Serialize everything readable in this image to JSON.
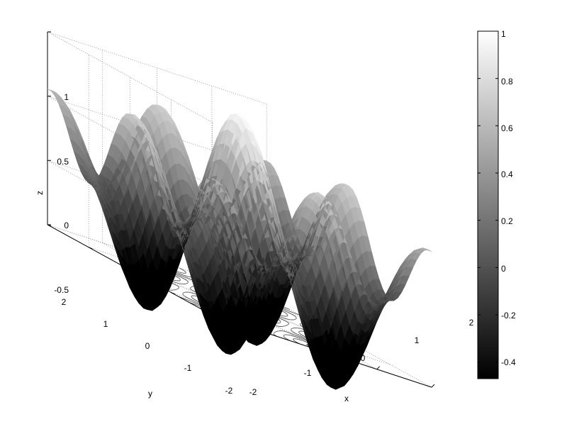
{
  "chart_data": {
    "type": "surface",
    "title": "",
    "xlabel": "x",
    "ylabel": "y",
    "zlabel": "z",
    "x_ticks": [
      "-2",
      "-1",
      "0",
      "1",
      "2"
    ],
    "y_ticks": [
      "-2",
      "-1",
      "0",
      "1",
      "2"
    ],
    "z_ticks": [
      "-0.5",
      "0",
      "0.5",
      "1"
    ],
    "xlim": [
      -2,
      2
    ],
    "ylim": [
      -2,
      2
    ],
    "zlim": [
      -0.5,
      1
    ],
    "colormap": "gray",
    "colorbar": {
      "ticks": [
        "1",
        "0.8",
        "0.6",
        "0.4",
        "0.2",
        "0",
        "-0.2",
        "-0.4"
      ],
      "range": [
        -0.47,
        1
      ],
      "location": "right"
    },
    "grid": true,
    "contours_on_floor": true,
    "surface_peak": 1,
    "surface_min": -0.47,
    "colors": {
      "axes": "#000000",
      "grid": "#8a8a8a",
      "contour": "#555555"
    }
  }
}
